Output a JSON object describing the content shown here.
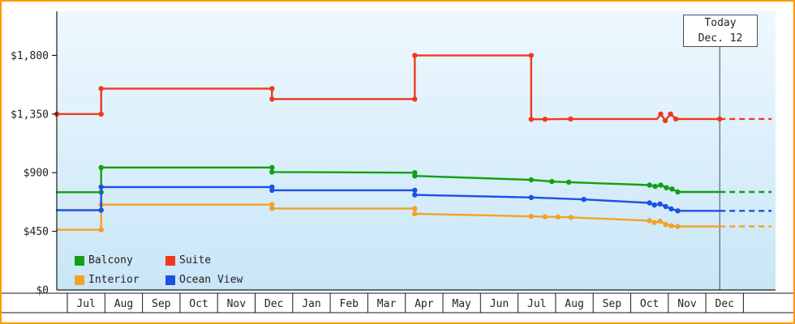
{
  "colors": {
    "frame_border": "#ff9900",
    "plot_bg_top": "#eef8fe",
    "plot_bg_bottom": "#c9e6f7",
    "axis": "#1a1a1a",
    "text": "#222222",
    "today_line": "#44505c",
    "balcony": "#12a012",
    "suite": "#f0391c",
    "interior": "#f1a228",
    "ocean_view": "#1d51e3"
  },
  "chart_data": {
    "type": "line",
    "today": {
      "line1": "Today",
      "line2": "Dec. 12"
    },
    "today_month_offset": 17.37,
    "ylim": [
      0,
      2000
    ],
    "y_ticks": [
      {
        "value": 0,
        "label": "$0"
      },
      {
        "value": 450,
        "label": "$450"
      },
      {
        "value": 900,
        "label": "$900"
      },
      {
        "value": 1350,
        "label": "$1,350"
      },
      {
        "value": 1800,
        "label": "$1,800"
      }
    ],
    "x_months": [
      "Jul",
      "Aug",
      "Sep",
      "Oct",
      "Nov",
      "Dec",
      "Jan",
      "Feb",
      "Mar",
      "Apr",
      "May",
      "Jun",
      "Jul",
      "Aug",
      "Sep",
      "Oct",
      "Nov",
      "Dec"
    ],
    "legend": [
      {
        "label": "Balcony",
        "color": "#12a012"
      },
      {
        "label": "Suite",
        "color": "#f0391c"
      },
      {
        "label": "Interior",
        "color": "#f1a228"
      },
      {
        "label": "Ocean View",
        "color": "#1d51e3"
      }
    ],
    "series": [
      {
        "name": "Balcony",
        "color": "#12a012",
        "dash_to": 18.75,
        "points": [
          [
            -0.28,
            750,
            0
          ],
          [
            0.9,
            750,
            1
          ],
          [
            0.9,
            940,
            1
          ],
          [
            5.45,
            940,
            1
          ],
          [
            5.45,
            905,
            1
          ],
          [
            9.25,
            900,
            1
          ],
          [
            9.25,
            875,
            1
          ],
          [
            12.35,
            845,
            1
          ],
          [
            12.9,
            832,
            1
          ],
          [
            13.35,
            827,
            1
          ],
          [
            15.5,
            805,
            1
          ],
          [
            15.65,
            795,
            1
          ],
          [
            15.8,
            805,
            1
          ],
          [
            15.95,
            785,
            1
          ],
          [
            16.1,
            775,
            1
          ],
          [
            16.25,
            752,
            1
          ],
          [
            17.37,
            752,
            0
          ]
        ]
      },
      {
        "name": "Suite",
        "color": "#f0391c",
        "dash_to": 18.75,
        "points": [
          [
            -0.28,
            1350,
            1
          ],
          [
            0.9,
            1350,
            1
          ],
          [
            0.9,
            1545,
            1
          ],
          [
            5.45,
            1545,
            1
          ],
          [
            5.45,
            1465,
            1
          ],
          [
            9.25,
            1465,
            1
          ],
          [
            9.25,
            1800,
            1
          ],
          [
            12.35,
            1800,
            1
          ],
          [
            12.35,
            1310,
            1
          ],
          [
            12.72,
            1310,
            1
          ],
          [
            13.4,
            1312,
            1
          ],
          [
            15.7,
            1312,
            0
          ],
          [
            15.8,
            1350,
            1
          ],
          [
            15.92,
            1300,
            1
          ],
          [
            16.06,
            1350,
            1
          ],
          [
            16.2,
            1312,
            1
          ],
          [
            17.37,
            1312,
            1
          ]
        ]
      },
      {
        "name": "Interior",
        "color": "#f1a228",
        "dash_to": 18.75,
        "points": [
          [
            -0.28,
            462,
            0
          ],
          [
            0.9,
            462,
            1
          ],
          [
            0.9,
            655,
            1
          ],
          [
            5.45,
            655,
            1
          ],
          [
            5.45,
            625,
            1
          ],
          [
            9.25,
            625,
            1
          ],
          [
            9.25,
            585,
            1
          ],
          [
            12.35,
            565,
            1
          ],
          [
            12.72,
            562,
            1
          ],
          [
            13.07,
            560,
            1
          ],
          [
            13.41,
            557,
            1
          ],
          [
            15.5,
            532,
            1
          ],
          [
            15.63,
            518,
            1
          ],
          [
            15.78,
            528,
            1
          ],
          [
            15.93,
            502,
            1
          ],
          [
            16.08,
            492,
            1
          ],
          [
            16.25,
            487,
            1
          ],
          [
            17.37,
            487,
            0
          ]
        ]
      },
      {
        "name": "Ocean View",
        "color": "#1d51e3",
        "dash_to": 18.75,
        "points": [
          [
            -0.28,
            612,
            0
          ],
          [
            0.9,
            612,
            1
          ],
          [
            0.9,
            790,
            1
          ],
          [
            5.45,
            790,
            1
          ],
          [
            5.45,
            765,
            1
          ],
          [
            9.25,
            765,
            1
          ],
          [
            9.25,
            730,
            1
          ],
          [
            12.35,
            710,
            1
          ],
          [
            13.75,
            695,
            1
          ],
          [
            15.5,
            668,
            1
          ],
          [
            15.63,
            652,
            1
          ],
          [
            15.78,
            660,
            1
          ],
          [
            15.93,
            640,
            1
          ],
          [
            16.08,
            622,
            1
          ],
          [
            16.25,
            607,
            1
          ],
          [
            17.37,
            607,
            0
          ]
        ]
      }
    ]
  }
}
